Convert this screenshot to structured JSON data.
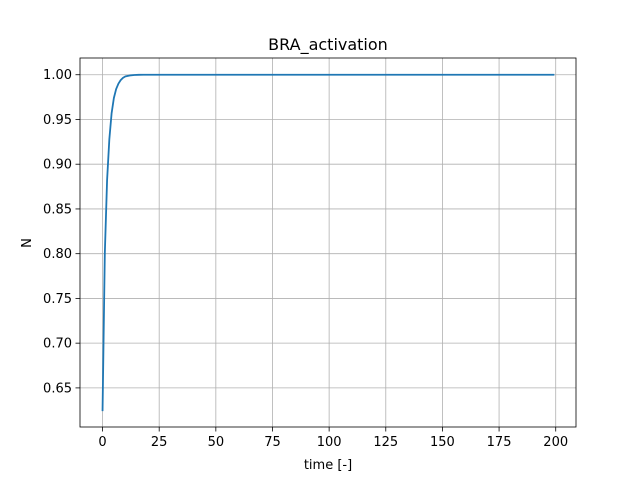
{
  "chart_data": {
    "type": "line",
    "title": "BRA_activation",
    "xlabel": "time [-]",
    "ylabel": "N",
    "xlim": [
      -9.95,
      208.95
    ],
    "ylim": [
      0.6063,
      1.0187
    ],
    "xticks": [
      0,
      25,
      50,
      75,
      100,
      125,
      150,
      175,
      200
    ],
    "yticks": [
      0.65,
      0.7,
      0.75,
      0.8,
      0.85,
      0.9,
      0.95,
      1.0
    ],
    "xtick_labels": [
      "0",
      "25",
      "50",
      "75",
      "100",
      "125",
      "150",
      "175",
      "200"
    ],
    "ytick_labels": [
      "0.65",
      "0.70",
      "0.75",
      "0.80",
      "0.85",
      "0.90",
      "0.95",
      "1.00"
    ],
    "grid": true,
    "legend": "none",
    "series": [
      {
        "color": "#1f77b4",
        "x": [
          0,
          1,
          2,
          3,
          4,
          5,
          6,
          7,
          8,
          9,
          10,
          12,
          14,
          16,
          18,
          20,
          25,
          30,
          40,
          50,
          75,
          100,
          125,
          150,
          175,
          199
        ],
        "y": [
          0.625,
          0.8,
          0.882,
          0.928,
          0.957,
          0.974,
          0.984,
          0.99,
          0.994,
          0.9965,
          0.998,
          0.9992,
          0.9997,
          0.9999,
          1.0,
          1.0,
          1.0,
          1.0,
          1.0,
          1.0,
          1.0,
          1.0,
          1.0,
          1.0,
          1.0,
          1.0
        ]
      }
    ]
  }
}
